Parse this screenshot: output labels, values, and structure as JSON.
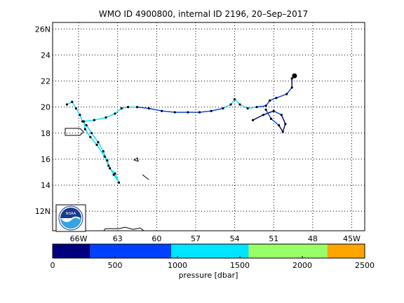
{
  "chart_data": {
    "type": "map",
    "title": "WMO ID 4900800, internal ID 2196, 20–Sep–2017",
    "lat_ticks": [
      "12N",
      "14",
      "16",
      "18",
      "20",
      "22",
      "24",
      "26N"
    ],
    "lon_ticks": [
      "66W",
      "63",
      "60",
      "57",
      "54",
      "51",
      "48",
      "45W"
    ],
    "lon_range": [
      -68,
      -44
    ],
    "lat_range": [
      10.5,
      26.5
    ],
    "grid": true,
    "logo": "noaa-logo",
    "colorbar": {
      "label": "pressure [dbar]",
      "ticks": [
        "0",
        "500",
        "1000",
        "1500",
        "2000",
        "2500"
      ],
      "range": [
        0,
        2500
      ],
      "segments": [
        {
          "from": 0,
          "to": 300,
          "color": "#00007f"
        },
        {
          "from": 300,
          "to": 950,
          "color": "#0040ff"
        },
        {
          "from": 950,
          "to": 1570,
          "color": "#00e5ff"
        },
        {
          "from": 1570,
          "to": 2200,
          "color": "#99ff66"
        },
        {
          "from": 2200,
          "to": 2500,
          "color": "#ffa500"
        }
      ]
    },
    "track": [
      [
        -66.9,
        20.2
      ],
      [
        -66.5,
        20.4
      ],
      [
        -66.2,
        19.9
      ],
      [
        -65.9,
        19.4
      ],
      [
        -65.7,
        18.9
      ],
      [
        -65.4,
        18.6
      ],
      [
        -65.0,
        18.0
      ],
      [
        -64.5,
        17.3
      ],
      [
        -64.1,
        16.6
      ],
      [
        -63.8,
        15.9
      ],
      [
        -63.6,
        15.3
      ],
      [
        -63.2,
        14.9
      ],
      [
        -62.9,
        14.2
      ],
      [
        -63.3,
        14.8
      ],
      [
        -63.7,
        15.5
      ],
      [
        -64.0,
        16.2
      ],
      [
        -64.6,
        17.1
      ],
      [
        -65.1,
        17.7
      ],
      [
        -65.5,
        18.3
      ],
      [
        -65.6,
        18.9
      ],
      [
        -64.8,
        19.0
      ],
      [
        -63.9,
        19.2
      ],
      [
        -63.2,
        19.5
      ],
      [
        -62.7,
        19.9
      ],
      [
        -62.2,
        20.0
      ],
      [
        -61.5,
        20.0
      ],
      [
        -60.6,
        19.9
      ],
      [
        -59.6,
        19.7
      ],
      [
        -58.6,
        19.6
      ],
      [
        -57.6,
        19.6
      ],
      [
        -56.7,
        19.6
      ],
      [
        -55.8,
        19.7
      ],
      [
        -54.9,
        19.9
      ],
      [
        -54.3,
        20.2
      ],
      [
        -54.0,
        20.6
      ],
      [
        -53.6,
        20.2
      ],
      [
        -53.0,
        19.9
      ],
      [
        -52.3,
        20.0
      ],
      [
        -51.6,
        20.1
      ],
      [
        -51.3,
        20.5
      ],
      [
        -50.8,
        20.7
      ],
      [
        -50.0,
        21.0
      ],
      [
        -49.6,
        21.5
      ],
      [
        -49.6,
        22.2
      ],
      [
        -49.4,
        22.4
      ]
    ],
    "track_branch": [
      [
        -52.6,
        19.0
      ],
      [
        -51.8,
        19.4
      ],
      [
        -51.0,
        19.7
      ],
      [
        -50.4,
        19.4
      ],
      [
        -50.1,
        18.7
      ],
      [
        -50.3,
        18.1
      ],
      [
        -50.6,
        18.6
      ],
      [
        -51.2,
        19.1
      ],
      [
        -51.6,
        19.8
      ]
    ],
    "track_pressures": [
      1200,
      1300,
      1400,
      1200,
      1100,
      1200,
      1300,
      1400,
      1200,
      1300,
      1100,
      1400,
      1300,
      1200,
      1100,
      1200,
      1300,
      1200,
      1100,
      1000,
      1200,
      1300,
      1400,
      1200,
      1100,
      800,
      700,
      600,
      500,
      400,
      500,
      600,
      1100,
      1200,
      1300,
      1100,
      1000,
      900,
      700,
      600,
      400,
      300,
      250,
      200,
      150
    ],
    "branch_pressures": [
      200,
      250,
      300,
      250,
      200,
      200,
      300,
      400,
      600
    ]
  }
}
